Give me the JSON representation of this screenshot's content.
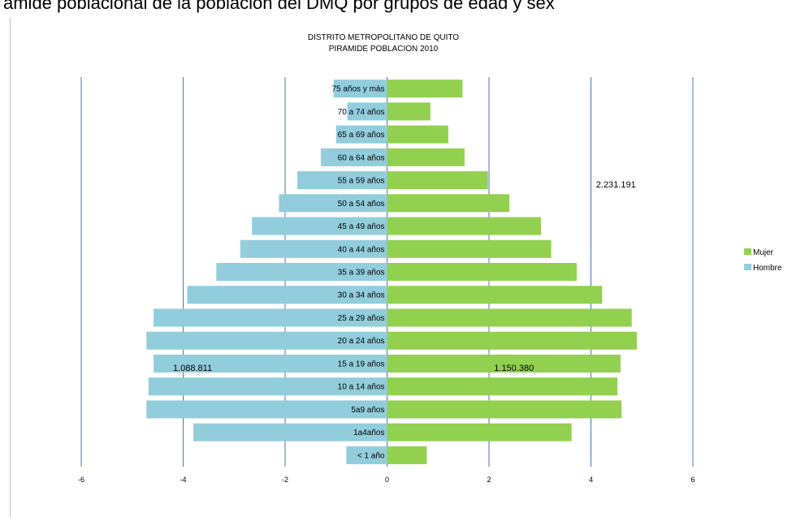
{
  "page_caption": "ámide poblacional de la población del DMQ por grupos de edad y sex",
  "chart_data": {
    "type": "bar",
    "orientation": "horizontal",
    "title": "DISTRITO METROPOLITANO  DE QUITO",
    "subtitle": "PIRAMIDE POBLACION  2010",
    "categories": [
      "75 años y más",
      "70 a 74 años",
      "65 a 69 años",
      "60 a 64 años",
      "55 a 59 años",
      "50 a 54 años",
      "45 a 49 años",
      "40 a 44 años",
      "35 a 39 años",
      "30 a 34 años",
      "25 a 29 años",
      "20 a 24 años",
      "15 a 19 años",
      "10 a 14 años",
      "5a9 años",
      "1a4años",
      "< 1 año"
    ],
    "series": [
      {
        "name": "Mujer",
        "color": "#92d050",
        "values": [
          1.48,
          0.85,
          1.2,
          1.52,
          1.98,
          2.4,
          3.02,
          3.22,
          3.72,
          4.22,
          4.8,
          4.9,
          4.58,
          4.52,
          4.6,
          3.62,
          0.78
        ]
      },
      {
        "name": "Hombre",
        "color": "#92cddc",
        "values": [
          -1.05,
          -0.78,
          -1.0,
          -1.3,
          -1.76,
          -2.12,
          -2.65,
          -2.88,
          -3.35,
          -3.92,
          -4.58,
          -4.72,
          -4.58,
          -4.68,
          -4.72,
          -3.8,
          -0.8
        ]
      }
    ],
    "xlim": [
      -6,
      6
    ],
    "xticks": [
      -6,
      -4,
      -2,
      0,
      2,
      4,
      6
    ],
    "grid": true,
    "legend_position": "right",
    "annotations": [
      {
        "text": "2.231.191",
        "x": 4.1,
        "category": "55 a 59 años"
      },
      {
        "text": "1.088.811",
        "x": -4.2,
        "category": "15 a 19 años"
      },
      {
        "text": "1.150.380",
        "x": 2.1,
        "category": "15 a 19 años"
      }
    ]
  }
}
